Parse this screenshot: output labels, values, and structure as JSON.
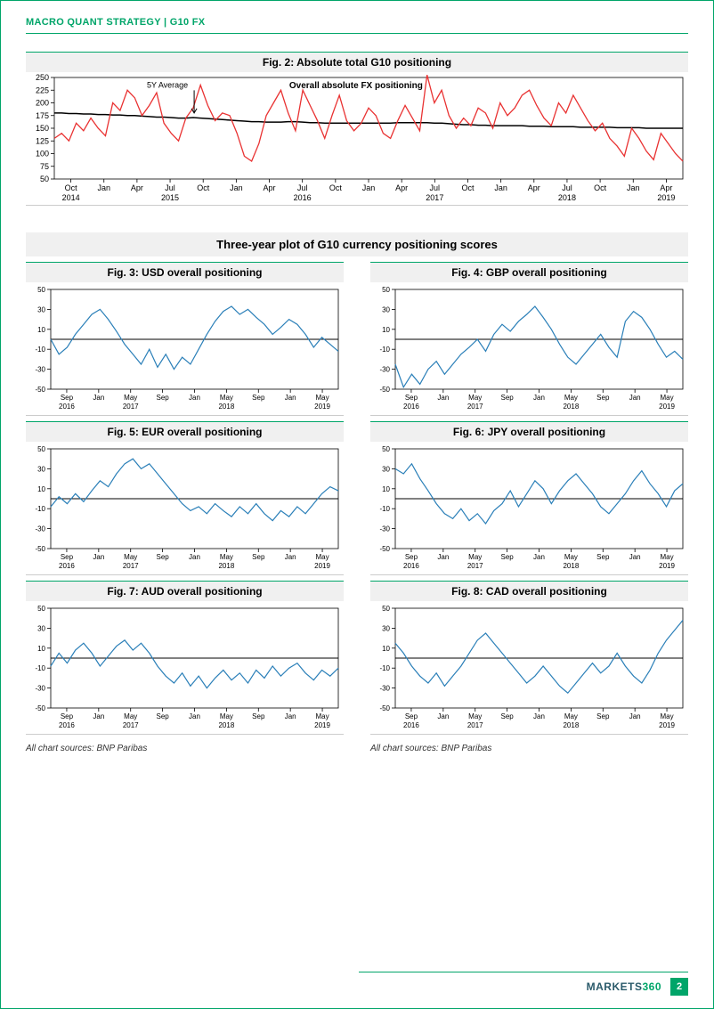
{
  "header": "MACRO QUANT STRATEGY | G10 FX",
  "page_number": "2",
  "brand_left": "MARKETS",
  "brand_right": "360",
  "colors": {
    "accent": "#00a569",
    "red_line": "#e93232",
    "blue_line": "#1f77b4",
    "avg_line": "#000000",
    "zero_line": "#000000",
    "grid_bg": "#ffffff",
    "title_bg": "#f0f0f0"
  },
  "fig2": {
    "title": "Fig. 2: Absolute total G10 positioning",
    "annotation_avg": "5Y Average",
    "annotation_series": "Overall absolute FX positioning",
    "ylim": [
      50,
      250
    ],
    "ytick_step": 25,
    "yticks": [
      50,
      75,
      100,
      125,
      150,
      175,
      200,
      225,
      250
    ],
    "x_labels_top": [
      "Oct",
      "Jan",
      "Apr",
      "Jul",
      "Oct",
      "Jan",
      "Apr",
      "Jul",
      "Oct",
      "Jan",
      "Apr",
      "Jul",
      "Oct",
      "Jan",
      "Apr",
      "Jul",
      "Oct",
      "Jan",
      "Apr"
    ],
    "x_labels_bottom": [
      "2014",
      "",
      "",
      "2015",
      "",
      "",
      "",
      "2016",
      "",
      "",
      "",
      "2017",
      "",
      "",
      "",
      "2018",
      "",
      "",
      "2019"
    ],
    "series_values": [
      130,
      140,
      125,
      160,
      145,
      170,
      150,
      135,
      200,
      185,
      225,
      210,
      175,
      195,
      220,
      160,
      140,
      125,
      170,
      190,
      235,
      195,
      165,
      180,
      175,
      140,
      95,
      85,
      120,
      175,
      200,
      225,
      180,
      145,
      225,
      195,
      165,
      130,
      175,
      215,
      165,
      145,
      160,
      190,
      175,
      140,
      130,
      165,
      195,
      170,
      145,
      255,
      200,
      225,
      175,
      150,
      170,
      155,
      190,
      180,
      150,
      200,
      175,
      190,
      215,
      225,
      195,
      170,
      155,
      200,
      180,
      215,
      190,
      165,
      145,
      160,
      130,
      115,
      95,
      150,
      130,
      105,
      88,
      140,
      120,
      100,
      85
    ],
    "avg_values": [
      180,
      180,
      179,
      179,
      178,
      178,
      177,
      177,
      176,
      176,
      175,
      175,
      174,
      173,
      172,
      172,
      171,
      170,
      170,
      171,
      170,
      169,
      168,
      167,
      166,
      165,
      164,
      163,
      163,
      162,
      162,
      162,
      163,
      163,
      162,
      161,
      161,
      160,
      160,
      160,
      160,
      160,
      160,
      160,
      160,
      160,
      160,
      161,
      161,
      161,
      161,
      161,
      160,
      160,
      159,
      158,
      157,
      157,
      156,
      156,
      155,
      155,
      155,
      155,
      155,
      154,
      154,
      154,
      153,
      153,
      153,
      153,
      152,
      152,
      152,
      152,
      152,
      151,
      151,
      151,
      151,
      150,
      150,
      150,
      150,
      150,
      150
    ],
    "line_width": 1.3,
    "avg_line_width": 1.5
  },
  "section_title": "Three-year plot of G10 currency positioning scores",
  "small_common": {
    "ylim": [
      -50,
      50
    ],
    "yticks": [
      -50,
      -30,
      -10,
      10,
      30,
      50
    ],
    "x_labels_top": [
      "Sep",
      "Jan",
      "May",
      "Sep",
      "Jan",
      "May",
      "Sep",
      "Jan",
      "May"
    ],
    "x_labels_bottom": [
      "2016",
      "",
      "2017",
      "",
      "",
      "2018",
      "",
      "",
      "2019"
    ],
    "line_color": "#2a7fb8",
    "line_width": 1.2
  },
  "fig3": {
    "title": "Fig. 3: USD overall positioning",
    "values": [
      0,
      -15,
      -8,
      5,
      15,
      25,
      30,
      20,
      8,
      -5,
      -15,
      -25,
      -10,
      -28,
      -15,
      -30,
      -18,
      -25,
      -10,
      5,
      18,
      28,
      33,
      25,
      30,
      22,
      15,
      5,
      12,
      20,
      15,
      5,
      -8,
      2,
      -5,
      -12
    ]
  },
  "fig4": {
    "title": "Fig. 4: GBP overall positioning",
    "values": [
      -25,
      -48,
      -35,
      -45,
      -30,
      -22,
      -35,
      -25,
      -15,
      -8,
      0,
      -12,
      5,
      15,
      8,
      18,
      25,
      33,
      22,
      10,
      -5,
      -18,
      -25,
      -15,
      -5,
      5,
      -8,
      -18,
      18,
      28,
      22,
      10,
      -5,
      -18,
      -12,
      -20
    ]
  },
  "fig5": {
    "title": "Fig. 5: EUR overall positioning",
    "values": [
      -8,
      2,
      -5,
      5,
      -3,
      8,
      18,
      12,
      25,
      35,
      40,
      30,
      35,
      25,
      15,
      5,
      -5,
      -12,
      -8,
      -15,
      -5,
      -12,
      -18,
      -8,
      -15,
      -5,
      -15,
      -22,
      -12,
      -18,
      -8,
      -15,
      -5,
      5,
      12,
      8
    ]
  },
  "fig6": {
    "title": "Fig. 6: JPY overall positioning",
    "values": [
      30,
      25,
      35,
      20,
      8,
      -5,
      -15,
      -20,
      -10,
      -22,
      -15,
      -25,
      -12,
      -5,
      8,
      -8,
      5,
      18,
      10,
      -5,
      8,
      18,
      25,
      15,
      5,
      -8,
      -15,
      -5,
      5,
      18,
      28,
      15,
      5,
      -8,
      8,
      15
    ]
  },
  "fig7": {
    "title": "Fig. 7: AUD overall positioning",
    "values": [
      -8,
      5,
      -5,
      8,
      15,
      5,
      -8,
      2,
      12,
      18,
      8,
      15,
      5,
      -8,
      -18,
      -25,
      -15,
      -28,
      -18,
      -30,
      -20,
      -12,
      -22,
      -15,
      -25,
      -12,
      -20,
      -8,
      -18,
      -10,
      -5,
      -15,
      -22,
      -12,
      -18,
      -10
    ]
  },
  "fig8": {
    "title": "Fig. 8: CAD overall positioning",
    "values": [
      15,
      5,
      -8,
      -18,
      -25,
      -15,
      -28,
      -18,
      -8,
      5,
      18,
      25,
      15,
      5,
      -5,
      -15,
      -25,
      -18,
      -8,
      -18,
      -28,
      -35,
      -25,
      -15,
      -5,
      -15,
      -8,
      5,
      -8,
      -18,
      -25,
      -12,
      5,
      18,
      28,
      38
    ]
  },
  "source_left": "All chart sources: BNP Paribas",
  "source_right": "All chart sources: BNP Paribas"
}
